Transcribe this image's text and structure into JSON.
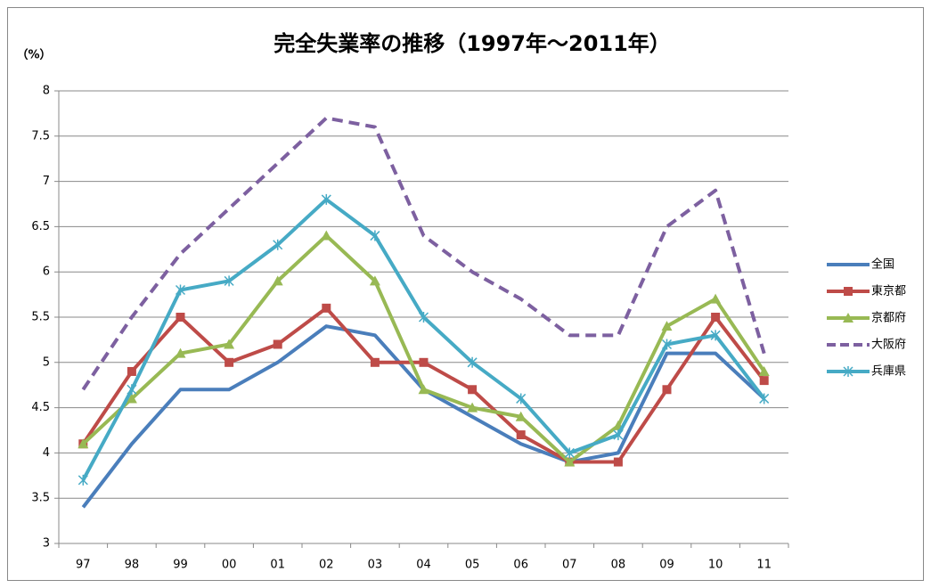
{
  "chart_data": {
    "type": "line",
    "title": "完全失業率の推移（1997年～2011年）",
    "y_label": "（%）",
    "categories": [
      "97",
      "98",
      "99",
      "00",
      "01",
      "02",
      "03",
      "04",
      "05",
      "06",
      "07",
      "08",
      "09",
      "10",
      "11"
    ],
    "series": [
      {
        "name": "全国",
        "color": "#4a7ebb",
        "marker": "none",
        "dash": false,
        "values": [
          3.4,
          4.1,
          4.7,
          4.7,
          5.0,
          5.4,
          5.3,
          4.7,
          4.4,
          4.1,
          3.9,
          4.0,
          5.1,
          5.1,
          4.6
        ]
      },
      {
        "name": "東京都",
        "color": "#be4b48",
        "marker": "square",
        "dash": false,
        "values": [
          4.1,
          4.9,
          5.5,
          5.0,
          5.2,
          5.6,
          5.0,
          5.0,
          4.7,
          4.2,
          3.9,
          3.9,
          4.7,
          5.5,
          4.8
        ]
      },
      {
        "name": "京都府",
        "color": "#98b954",
        "marker": "triangle",
        "dash": false,
        "values": [
          4.1,
          4.6,
          5.1,
          5.2,
          5.9,
          6.4,
          5.9,
          4.7,
          4.5,
          4.4,
          3.9,
          4.3,
          5.4,
          5.7,
          4.9
        ]
      },
      {
        "name": "大阪府",
        "color": "#7d60a0",
        "marker": "none",
        "dash": true,
        "values": [
          4.7,
          5.5,
          6.2,
          6.7,
          7.2,
          7.7,
          7.6,
          6.4,
          6.0,
          5.7,
          5.3,
          5.3,
          6.5,
          6.9,
          5.1
        ]
      },
      {
        "name": "兵庫県",
        "color": "#46aac5",
        "marker": "asterisk",
        "dash": false,
        "values": [
          3.7,
          4.7,
          5.8,
          5.9,
          6.3,
          6.8,
          6.4,
          5.5,
          5.0,
          4.6,
          4.0,
          4.2,
          5.2,
          5.3,
          4.6
        ]
      }
    ],
    "ylim": [
      3,
      8
    ],
    "yticks": [
      3,
      3.5,
      4,
      4.5,
      5,
      5.5,
      6,
      6.5,
      7,
      7.5,
      8
    ],
    "grid": true,
    "legend": "right"
  }
}
